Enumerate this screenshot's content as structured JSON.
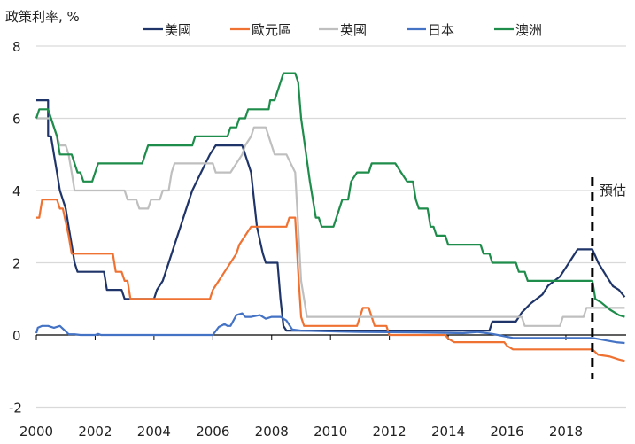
{
  "chart_data": {
    "type": "line",
    "title": "",
    "ylabel": "政策利率, %",
    "xlabel": "",
    "ylim": [
      -2,
      8
    ],
    "yticks": [
      8,
      6,
      4,
      2,
      0,
      -2
    ],
    "xlim": [
      2000,
      2020.0
    ],
    "xticks": [
      2000,
      2002,
      2004,
      2006,
      2008,
      2010,
      2012,
      2014,
      2016,
      2018
    ],
    "grid": true,
    "legend_position": "top",
    "annotation": {
      "label": "預估",
      "x": 2018.9
    },
    "series": [
      {
        "name": "美國",
        "color": "#1f3468",
        "points": [
          [
            2000,
            6.5
          ],
          [
            2000.4,
            6.5
          ],
          [
            2000.4,
            5.5
          ],
          [
            2000.5,
            5.5
          ],
          [
            2000.6,
            5.0
          ],
          [
            2000.7,
            4.5
          ],
          [
            2000.8,
            4.0
          ],
          [
            2000.9,
            3.75
          ],
          [
            2001.0,
            3.5
          ],
          [
            2001.1,
            3.0
          ],
          [
            2001.2,
            2.5
          ],
          [
            2001.3,
            2.0
          ],
          [
            2001.4,
            1.75
          ],
          [
            2002.0,
            1.75
          ],
          [
            2002.3,
            1.75
          ],
          [
            2002.4,
            1.25
          ],
          [
            2002.9,
            1.25
          ],
          [
            2003.0,
            1.0
          ],
          [
            2004.0,
            1.0
          ],
          [
            2004.1,
            1.25
          ],
          [
            2004.3,
            1.5
          ],
          [
            2004.5,
            2.0
          ],
          [
            2004.7,
            2.5
          ],
          [
            2004.9,
            3.0
          ],
          [
            2005.1,
            3.5
          ],
          [
            2005.3,
            4.0
          ],
          [
            2005.6,
            4.5
          ],
          [
            2005.9,
            5.0
          ],
          [
            2006.1,
            5.25
          ],
          [
            2007.0,
            5.25
          ],
          [
            2007.1,
            5.0
          ],
          [
            2007.3,
            4.5
          ],
          [
            2007.5,
            3.0
          ],
          [
            2007.7,
            2.25
          ],
          [
            2007.8,
            2.0
          ],
          [
            2008.2,
            2.0
          ],
          [
            2008.3,
            1.0
          ],
          [
            2008.4,
            0.25
          ],
          [
            2008.5,
            0.12
          ],
          [
            2015.4,
            0.12
          ],
          [
            2015.5,
            0.37
          ],
          [
            2016.3,
            0.37
          ],
          [
            2016.5,
            0.62
          ],
          [
            2016.8,
            0.87
          ],
          [
            2017.2,
            1.12
          ],
          [
            2017.4,
            1.37
          ],
          [
            2017.8,
            1.62
          ],
          [
            2018.0,
            1.87
          ],
          [
            2018.2,
            2.12
          ],
          [
            2018.4,
            2.37
          ],
          [
            2018.9,
            2.37
          ],
          [
            2019.1,
            2.0
          ],
          [
            2019.4,
            1.6
          ],
          [
            2019.6,
            1.35
          ],
          [
            2019.8,
            1.25
          ],
          [
            2020.0,
            1.05
          ]
        ]
      },
      {
        "name": "歐元區",
        "color": "#f07232",
        "points": [
          [
            2000,
            3.25
          ],
          [
            2000.1,
            3.25
          ],
          [
            2000.2,
            3.75
          ],
          [
            2000.7,
            3.75
          ],
          [
            2000.8,
            3.5
          ],
          [
            2000.9,
            3.5
          ],
          [
            2001.1,
            2.75
          ],
          [
            2001.2,
            2.25
          ],
          [
            2002.6,
            2.25
          ],
          [
            2002.7,
            1.75
          ],
          [
            2002.9,
            1.75
          ],
          [
            2003.0,
            1.5
          ],
          [
            2003.1,
            1.5
          ],
          [
            2003.2,
            1.0
          ],
          [
            2005.9,
            1.0
          ],
          [
            2006.0,
            1.25
          ],
          [
            2006.2,
            1.5
          ],
          [
            2006.4,
            1.75
          ],
          [
            2006.6,
            2.0
          ],
          [
            2006.8,
            2.25
          ],
          [
            2006.9,
            2.5
          ],
          [
            2007.1,
            2.75
          ],
          [
            2007.3,
            3.0
          ],
          [
            2008.5,
            3.0
          ],
          [
            2008.6,
            3.25
          ],
          [
            2008.8,
            3.25
          ],
          [
            2008.9,
            1.75
          ],
          [
            2009.0,
            0.5
          ],
          [
            2009.1,
            0.25
          ],
          [
            2010.9,
            0.25
          ],
          [
            2011.0,
            0.5
          ],
          [
            2011.1,
            0.75
          ],
          [
            2011.3,
            0.75
          ],
          [
            2011.5,
            0.25
          ],
          [
            2011.9,
            0.25
          ],
          [
            2012.0,
            0.0
          ],
          [
            2013.9,
            0.0
          ],
          [
            2014.0,
            -0.1
          ],
          [
            2014.2,
            -0.2
          ],
          [
            2015.9,
            -0.2
          ],
          [
            2016.0,
            -0.3
          ],
          [
            2016.2,
            -0.4
          ],
          [
            2018.9,
            -0.4
          ],
          [
            2019.1,
            -0.55
          ],
          [
            2019.5,
            -0.6
          ],
          [
            2019.8,
            -0.68
          ],
          [
            2020.0,
            -0.72
          ]
        ]
      },
      {
        "name": "英國",
        "color": "#bfbfbf",
        "points": [
          [
            2000,
            6.0
          ],
          [
            2000.5,
            6.0
          ],
          [
            2000.6,
            5.75
          ],
          [
            2000.7,
            5.5
          ],
          [
            2000.8,
            5.25
          ],
          [
            2001.0,
            5.25
          ],
          [
            2001.1,
            5.0
          ],
          [
            2001.2,
            4.5
          ],
          [
            2001.3,
            4.0
          ],
          [
            2003.0,
            4.0
          ],
          [
            2003.1,
            3.75
          ],
          [
            2003.4,
            3.75
          ],
          [
            2003.5,
            3.5
          ],
          [
            2003.8,
            3.5
          ],
          [
            2003.9,
            3.75
          ],
          [
            2004.2,
            3.75
          ],
          [
            2004.3,
            4.0
          ],
          [
            2004.5,
            4.0
          ],
          [
            2004.6,
            4.5
          ],
          [
            2004.7,
            4.75
          ],
          [
            2006.0,
            4.75
          ],
          [
            2006.1,
            4.5
          ],
          [
            2006.6,
            4.5
          ],
          [
            2006.8,
            4.75
          ],
          [
            2007.0,
            5.0
          ],
          [
            2007.1,
            5.25
          ],
          [
            2007.3,
            5.5
          ],
          [
            2007.4,
            5.75
          ],
          [
            2007.8,
            5.75
          ],
          [
            2007.9,
            5.5
          ],
          [
            2008.1,
            5.0
          ],
          [
            2008.5,
            5.0
          ],
          [
            2008.8,
            4.5
          ],
          [
            2008.9,
            3.0
          ],
          [
            2009.0,
            1.5
          ],
          [
            2009.2,
            0.5
          ],
          [
            2016.5,
            0.5
          ],
          [
            2016.6,
            0.25
          ],
          [
            2017.8,
            0.25
          ],
          [
            2017.9,
            0.5
          ],
          [
            2018.6,
            0.5
          ],
          [
            2018.7,
            0.75
          ],
          [
            2019.5,
            0.75
          ],
          [
            2020.0,
            0.75
          ]
        ]
      },
      {
        "name": "日本",
        "color": "#4472c4",
        "points": [
          [
            2000,
            0.05
          ],
          [
            2000.05,
            0.2
          ],
          [
            2000.2,
            0.25
          ],
          [
            2000.4,
            0.25
          ],
          [
            2000.6,
            0.2
          ],
          [
            2000.8,
            0.25
          ],
          [
            2001.0,
            0.1
          ],
          [
            2001.1,
            0.02
          ],
          [
            2001.3,
            0.02
          ],
          [
            2001.5,
            0.0
          ],
          [
            2002.0,
            0.0
          ],
          [
            2002.1,
            0.03
          ],
          [
            2002.2,
            0.0
          ],
          [
            2006.0,
            0.0
          ],
          [
            2006.2,
            0.22
          ],
          [
            2006.4,
            0.3
          ],
          [
            2006.5,
            0.25
          ],
          [
            2006.6,
            0.25
          ],
          [
            2006.8,
            0.55
          ],
          [
            2007.0,
            0.6
          ],
          [
            2007.1,
            0.5
          ],
          [
            2007.3,
            0.5
          ],
          [
            2007.6,
            0.55
          ],
          [
            2007.8,
            0.45
          ],
          [
            2008.0,
            0.5
          ],
          [
            2008.3,
            0.5
          ],
          [
            2008.5,
            0.4
          ],
          [
            2008.7,
            0.15
          ],
          [
            2009.0,
            0.12
          ],
          [
            2011.0,
            0.08
          ],
          [
            2013.0,
            0.07
          ],
          [
            2014.5,
            0.05
          ],
          [
            2015.0,
            0.08
          ],
          [
            2015.5,
            0.03
          ],
          [
            2016.0,
            -0.05
          ],
          [
            2016.2,
            -0.08
          ],
          [
            2018.9,
            -0.08
          ],
          [
            2019.3,
            -0.14
          ],
          [
            2019.7,
            -0.2
          ],
          [
            2020.0,
            -0.22
          ]
        ]
      },
      {
        "name": "澳洲",
        "color": "#1e8c4a",
        "points": [
          [
            2000,
            6.0
          ],
          [
            2000.1,
            6.25
          ],
          [
            2000.4,
            6.25
          ],
          [
            2000.5,
            6.0
          ],
          [
            2000.7,
            5.5
          ],
          [
            2000.8,
            5.0
          ],
          [
            2001.2,
            5.0
          ],
          [
            2001.4,
            4.5
          ],
          [
            2001.5,
            4.5
          ],
          [
            2001.6,
            4.25
          ],
          [
            2001.9,
            4.25
          ],
          [
            2002.1,
            4.75
          ],
          [
            2003.6,
            4.75
          ],
          [
            2003.8,
            5.25
          ],
          [
            2005.3,
            5.25
          ],
          [
            2005.4,
            5.5
          ],
          [
            2006.5,
            5.5
          ],
          [
            2006.6,
            5.75
          ],
          [
            2006.8,
            5.75
          ],
          [
            2006.9,
            6.0
          ],
          [
            2007.1,
            6.0
          ],
          [
            2007.2,
            6.25
          ],
          [
            2007.9,
            6.25
          ],
          [
            2007.95,
            6.5
          ],
          [
            2008.1,
            6.5
          ],
          [
            2008.2,
            6.75
          ],
          [
            2008.3,
            7.0
          ],
          [
            2008.4,
            7.25
          ],
          [
            2008.8,
            7.25
          ],
          [
            2008.9,
            7.0
          ],
          [
            2009.0,
            6.0
          ],
          [
            2009.3,
            4.25
          ],
          [
            2009.5,
            3.25
          ],
          [
            2009.6,
            3.25
          ],
          [
            2009.7,
            3.0
          ],
          [
            2010.1,
            3.0
          ],
          [
            2010.3,
            3.5
          ],
          [
            2010.4,
            3.75
          ],
          [
            2010.6,
            3.75
          ],
          [
            2010.7,
            4.25
          ],
          [
            2010.9,
            4.5
          ],
          [
            2011.3,
            4.5
          ],
          [
            2011.4,
            4.75
          ],
          [
            2012.2,
            4.75
          ],
          [
            2012.4,
            4.5
          ],
          [
            2012.6,
            4.25
          ],
          [
            2012.8,
            4.25
          ],
          [
            2012.9,
            3.75
          ],
          [
            2013.0,
            3.5
          ],
          [
            2013.3,
            3.5
          ],
          [
            2013.4,
            3.0
          ],
          [
            2013.5,
            3.0
          ],
          [
            2013.6,
            2.75
          ],
          [
            2013.9,
            2.75
          ],
          [
            2014.0,
            2.5
          ],
          [
            2015.1,
            2.5
          ],
          [
            2015.2,
            2.25
          ],
          [
            2015.4,
            2.25
          ],
          [
            2015.5,
            2.0
          ],
          [
            2016.3,
            2.0
          ],
          [
            2016.4,
            1.75
          ],
          [
            2016.6,
            1.75
          ],
          [
            2016.7,
            1.5
          ],
          [
            2018.9,
            1.5
          ],
          [
            2019.0,
            1.0
          ],
          [
            2019.2,
            0.9
          ],
          [
            2019.5,
            0.7
          ],
          [
            2019.8,
            0.55
          ],
          [
            2020.0,
            0.5
          ]
        ]
      }
    ]
  }
}
